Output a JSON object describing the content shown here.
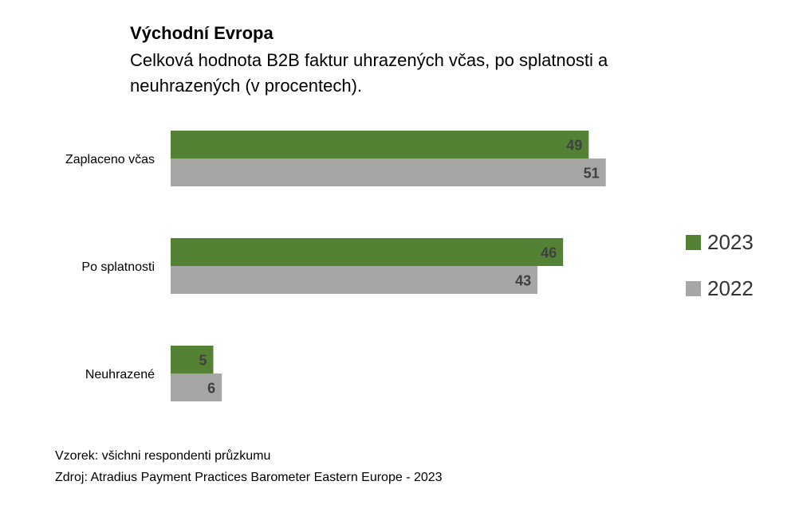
{
  "header": {
    "title": "Východní Evropa",
    "subtitle": "Celková hodnota B2B faktur uhrazených včas, po splatnosti a neuhrazených (v procentech)."
  },
  "colors": {
    "s2023": "#548235",
    "s2022": "#a6a6a6",
    "label": "#404040"
  },
  "chart_data": {
    "type": "bar",
    "orientation": "horizontal",
    "title": "Východní Evropa",
    "subtitle": "Celková hodnota B2B faktur uhrazených včas, po splatnosti a neuhrazených (v procentech).",
    "categories": [
      "Zaplaceno včas",
      "Po splatnosti",
      "Neuhrazené"
    ],
    "series": [
      {
        "name": "2023",
        "values": [
          49,
          46,
          5
        ]
      },
      {
        "name": "2022",
        "values": [
          51,
          43,
          6
        ]
      }
    ],
    "xlim": [
      0,
      100
    ],
    "grid": false,
    "legend_position": "right",
    "data_labels": true
  },
  "footer": {
    "sample": "Vzorek: všichni respondenti průzkumu",
    "source": "Zdroj: Atradius Payment Practices Barometer Eastern Europe - 2023"
  }
}
